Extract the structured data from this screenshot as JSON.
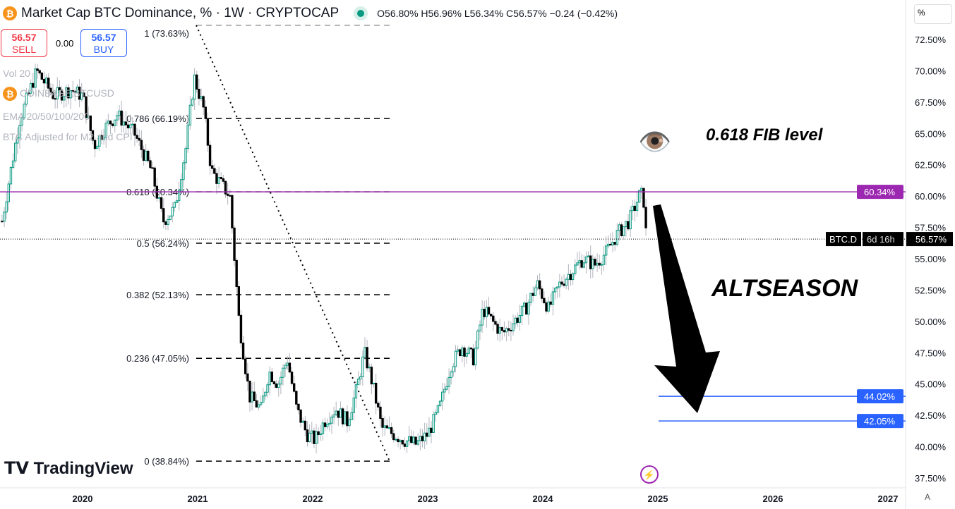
{
  "header": {
    "title": "Market Cap BTC Dominance, % · 1W · CRYPTOCAP",
    "ohlc": "O56.80%  H56.96%  L56.34%  C56.57%  −0.24 (−0.42%)"
  },
  "trade": {
    "sell_price": "56.57",
    "sell_label": "SELL",
    "spread": "0.00",
    "buy_price": "56.57",
    "buy_label": "BUY"
  },
  "indicators": [
    "Vol 20",
    "COINBASE:BTCUSD",
    "EMA 20/50/100/200",
    "BTC Adjusted for M2 and CPI"
  ],
  "logo": "TradingView",
  "axis_unit": "%",
  "auto_label": "A",
  "chart_data": {
    "type": "candlestick",
    "symbol": "BTC.D",
    "ylim": [
      37.5,
      73.5
    ],
    "yticks": [
      37.5,
      40,
      42.5,
      45,
      47.5,
      50,
      52.5,
      55,
      57.5,
      60,
      62.5,
      65,
      67.5,
      70,
      72.5
    ],
    "xticks": [
      "2020",
      "2021",
      "2022",
      "2023",
      "2024",
      "2025",
      "2026",
      "2027"
    ],
    "close_series": [
      [
        2019.3,
        58
      ],
      [
        2019.45,
        66
      ],
      [
        2019.6,
        70
      ],
      [
        2019.75,
        68
      ],
      [
        2019.9,
        68.5
      ],
      [
        2020.0,
        68
      ],
      [
        2020.1,
        64
      ],
      [
        2020.2,
        65.5
      ],
      [
        2020.3,
        66.5
      ],
      [
        2020.45,
        65
      ],
      [
        2020.6,
        62
      ],
      [
        2020.7,
        58
      ],
      [
        2020.8,
        59
      ],
      [
        2020.9,
        64
      ],
      [
        2020.97,
        69.5
      ],
      [
        2021.05,
        67
      ],
      [
        2021.12,
        62
      ],
      [
        2021.2,
        61
      ],
      [
        2021.28,
        60
      ],
      [
        2021.36,
        50
      ],
      [
        2021.45,
        44
      ],
      [
        2021.55,
        43
      ],
      [
        2021.62,
        46
      ],
      [
        2021.7,
        45
      ],
      [
        2021.78,
        47
      ],
      [
        2021.86,
        43
      ],
      [
        2021.95,
        41
      ],
      [
        2022.02,
        40.5
      ],
      [
        2022.1,
        42
      ],
      [
        2022.2,
        43
      ],
      [
        2022.3,
        42
      ],
      [
        2022.38,
        44.5
      ],
      [
        2022.45,
        47.5
      ],
      [
        2022.52,
        45
      ],
      [
        2022.6,
        41.5
      ],
      [
        2022.7,
        41
      ],
      [
        2022.8,
        40.5
      ],
      [
        2022.9,
        40.2
      ],
      [
        2023.0,
        41
      ],
      [
        2023.1,
        43
      ],
      [
        2023.2,
        46.5
      ],
      [
        2023.3,
        48
      ],
      [
        2023.4,
        47
      ],
      [
        2023.48,
        51
      ],
      [
        2023.56,
        50
      ],
      [
        2023.65,
        49
      ],
      [
        2023.75,
        50
      ],
      [
        2023.85,
        51
      ],
      [
        2023.95,
        53
      ],
      [
        2024.05,
        51
      ],
      [
        2024.15,
        53
      ],
      [
        2024.25,
        54
      ],
      [
        2024.35,
        55
      ],
      [
        2024.45,
        54.5
      ],
      [
        2024.55,
        55.5
      ],
      [
        2024.65,
        57
      ],
      [
        2024.75,
        58
      ],
      [
        2024.85,
        60.3
      ],
      [
        2024.88,
        59.5
      ],
      [
        2024.9,
        56.57
      ]
    ],
    "last": {
      "label": "BTC.D",
      "value": "56.57%",
      "countdown": "6d 16h"
    },
    "fib": [
      {
        "ratio": 1,
        "value": 73.63,
        "label": "1 (73.63%)"
      },
      {
        "ratio": 0.786,
        "value": 66.19,
        "label": "0.786 (66.19%)"
      },
      {
        "ratio": 0.618,
        "value": 60.34,
        "label": "0.618 (60.34%)"
      },
      {
        "ratio": 0.5,
        "value": 56.24,
        "label": "0.5 (56.24%)"
      },
      {
        "ratio": 0.382,
        "value": 52.13,
        "label": "0.382 (52.13%)"
      },
      {
        "ratio": 0.236,
        "value": 47.05,
        "label": "0.236 (47.05%)"
      },
      {
        "ratio": 0,
        "value": 38.84,
        "label": "0 (38.84%)"
      }
    ],
    "hlines": [
      {
        "value": 60.34,
        "label": "60.34%",
        "color": "#9c27b0"
      },
      {
        "value": 44.02,
        "label": "44.02%",
        "color": "#2962ff"
      },
      {
        "value": 42.05,
        "label": "42.05%",
        "color": "#2962ff"
      }
    ],
    "annotations": [
      "0.618 FIB level",
      "ALTSEASON"
    ],
    "colors": {
      "up": "#089981",
      "down": "#000000",
      "fib_line": "#000000"
    }
  }
}
